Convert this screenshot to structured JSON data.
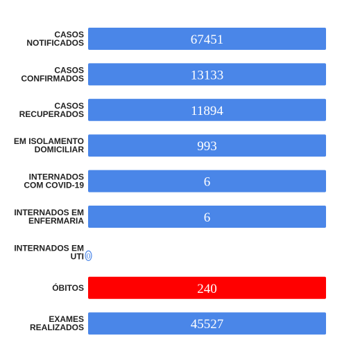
{
  "chart_data": {
    "type": "bar",
    "orientation": "horizontal",
    "categories": [
      [
        "CASOS",
        "NOTIFICADOS"
      ],
      [
        "CASOS",
        "CONFIRMADOS"
      ],
      [
        "CASOS",
        "RECUPERADOS"
      ],
      [
        "EM ISOLAMENTO",
        "DOMICILIAR"
      ],
      [
        "INTERNADOS",
        "COM COVID-19"
      ],
      [
        "INTERNADOS EM",
        "ENFERMARIA"
      ],
      [
        "INTERNADOS EM",
        "UTI"
      ],
      [
        "ÓBITOS"
      ],
      [
        "EXAMES",
        "REALIZADOS"
      ]
    ],
    "values": [
      67451,
      13133,
      11894,
      993,
      6,
      6,
      0,
      240,
      45527
    ],
    "colors": [
      "#4a86e8",
      "#4a86e8",
      "#4a86e8",
      "#4a86e8",
      "#4a86e8",
      "#4a86e8",
      "#4a86e8",
      "#ff0000",
      "#4a86e8"
    ],
    "title": "",
    "xlabel": "",
    "ylabel": "",
    "grid": false,
    "legend": "none"
  }
}
